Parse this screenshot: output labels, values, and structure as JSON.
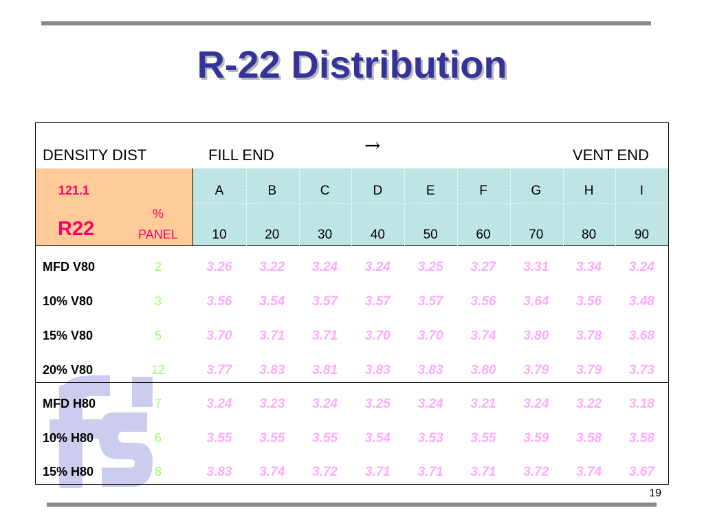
{
  "slide": {
    "title": "R-22 Distribution",
    "page_number": "19"
  },
  "table": {
    "header": {
      "left_label": "DENSITY DIST",
      "fill_label": "FILL END",
      "arrow": "→",
      "vent_label": "VENT END"
    },
    "key": {
      "density": "121.1",
      "material": "R22",
      "panel_label_line1": "%",
      "panel_label_line2": "PANEL"
    },
    "columns": [
      {
        "letter": "A",
        "position": "10"
      },
      {
        "letter": "B",
        "position": "20"
      },
      {
        "letter": "C",
        "position": "30"
      },
      {
        "letter": "D",
        "position": "40"
      },
      {
        "letter": "E",
        "position": "50"
      },
      {
        "letter": "F",
        "position": "60"
      },
      {
        "letter": "G",
        "position": "70"
      },
      {
        "letter": "H",
        "position": "80"
      },
      {
        "letter": "I",
        "position": "90"
      }
    ],
    "rows": [
      {
        "label": "MFD V80",
        "panel": "2",
        "values": [
          "3.26",
          "3.22",
          "3.24",
          "3.24",
          "3.25",
          "3.27",
          "3.31",
          "3.34",
          "3.24"
        ]
      },
      {
        "label": "10% V80",
        "panel": "3",
        "values": [
          "3.56",
          "3.54",
          "3.57",
          "3.57",
          "3.57",
          "3.56",
          "3.64",
          "3.56",
          "3.48"
        ]
      },
      {
        "label": "15% V80",
        "panel": "5",
        "values": [
          "3.70",
          "3.71",
          "3.71",
          "3.70",
          "3.70",
          "3.74",
          "3.80",
          "3.78",
          "3.68"
        ]
      },
      {
        "label": "20% V80",
        "panel": "12",
        "values": [
          "3.77",
          "3.83",
          "3.81",
          "3.83",
          "3.83",
          "3.80",
          "3.79",
          "3.79",
          "3.73"
        ]
      },
      {
        "label": "MFD H80",
        "panel": "7",
        "values": [
          "3.24",
          "3.23",
          "3.24",
          "3.25",
          "3.24",
          "3.21",
          "3.24",
          "3.22",
          "3.18"
        ]
      },
      {
        "label": "10% H80",
        "panel": "6",
        "values": [
          "3.55",
          "3.55",
          "3.55",
          "3.54",
          "3.53",
          "3.55",
          "3.59",
          "3.58",
          "3.58"
        ]
      },
      {
        "label": "15% H80",
        "panel": "8",
        "values": [
          "3.83",
          "3.74",
          "3.72",
          "3.71",
          "3.71",
          "3.71",
          "3.72",
          "3.74",
          "3.67"
        ]
      }
    ]
  },
  "colors": {
    "title": "#333399",
    "key_background": "#ffcc99",
    "column_header_background": "#bfe4e4",
    "key_text": "#ff0066",
    "panel_text": "#99ff66",
    "value_text": "#ffaaff",
    "logo": "#ccccee"
  },
  "watermark": {
    "icon": "fs-logo-icon",
    "text": "fs"
  }
}
